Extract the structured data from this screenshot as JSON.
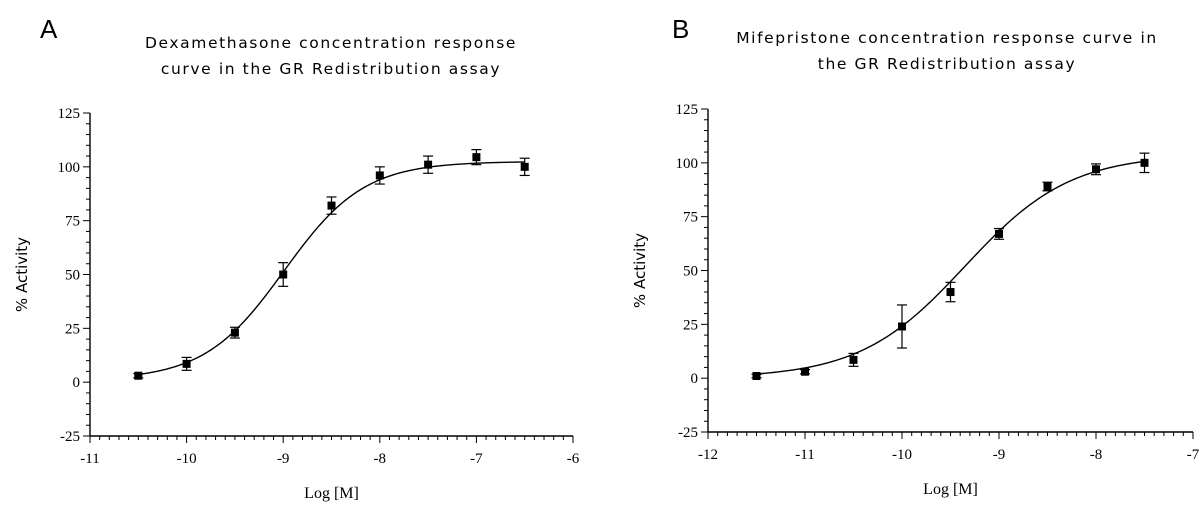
{
  "chart_data": [
    {
      "type": "scatter",
      "panel_label": "A",
      "title_lines": [
        "Dexamethasone concentration response",
        "curve in the GR Redistribution assay"
      ],
      "xlabel": "Log [M]",
      "ylabel": "% Activity",
      "xlim": [
        -11,
        -6
      ],
      "ylim": [
        -25,
        125
      ],
      "x_ticks": [
        "-11",
        "-10",
        "-9",
        "-8",
        "-7",
        "-6"
      ],
      "y_ticks": [
        "-25",
        "0",
        "25",
        "50",
        "75",
        "100",
        "125"
      ],
      "grid": false,
      "series": [
        {
          "marker": "square",
          "x": [
            -10.5,
            -10,
            -9.5,
            -9,
            -8.5,
            -8,
            -7.5,
            -7,
            -6.5
          ],
          "y": [
            3,
            8.5,
            23,
            50,
            82,
            96,
            101,
            104.5,
            100
          ],
          "error": [
            1,
            3,
            2.5,
            5.5,
            4,
            4,
            4,
            3.5,
            4
          ]
        }
      ],
      "fit": {
        "model": "sigmoidal",
        "bottom": 1,
        "top": 102.5,
        "logEC50": -8.99,
        "hill": 1.05
      }
    },
    {
      "type": "scatter",
      "panel_label": "B",
      "title_lines": [
        "Mifepristone concentration response curve in",
        "the GR Redistribution assay"
      ],
      "xlabel": "Log [M]",
      "ylabel": "% Activity",
      "xlim": [
        -12,
        -7
      ],
      "ylim": [
        -25,
        125
      ],
      "x_ticks": [
        "-12",
        "-11",
        "-10",
        "-9",
        "-8",
        "-7"
      ],
      "y_ticks": [
        "-25",
        "0",
        "25",
        "50",
        "75",
        "100",
        "125"
      ],
      "grid": false,
      "series": [
        {
          "marker": "square",
          "x": [
            -11.5,
            -11,
            -10.5,
            -10,
            -9.5,
            -9,
            -8.5,
            -8,
            -7.5
          ],
          "y": [
            1,
            3,
            8.5,
            24,
            40,
            67,
            89,
            97,
            100
          ],
          "error": [
            0.8,
            1,
            3,
            10,
            4.5,
            2.5,
            2,
            2.5,
            4.5
          ]
        }
      ],
      "fit": {
        "model": "sigmoidal",
        "bottom": 0,
        "top": 104,
        "logEC50": -9.35,
        "hill": 0.8
      }
    }
  ]
}
